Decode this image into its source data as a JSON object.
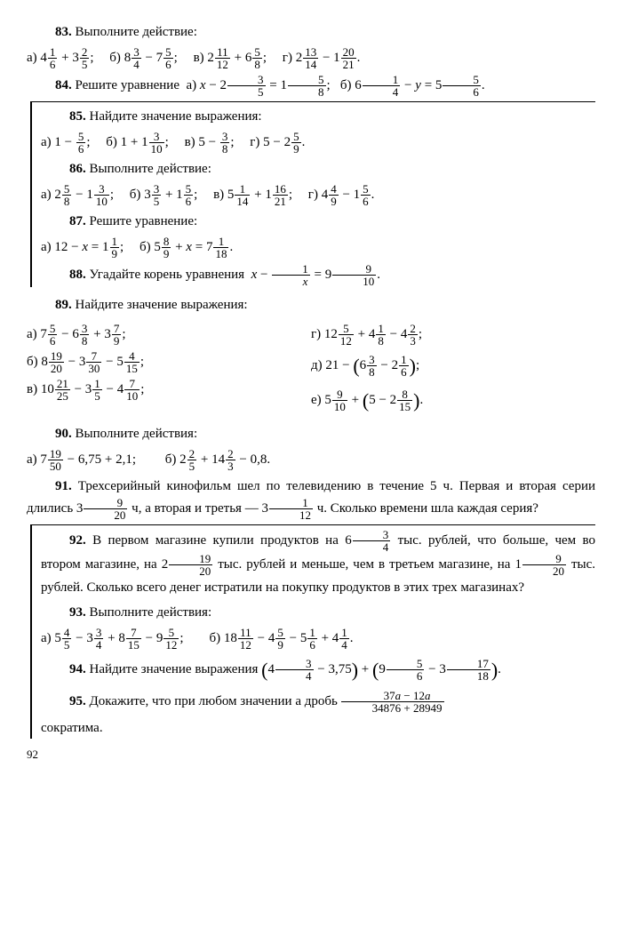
{
  "p83": {
    "title": "Выполните действие:",
    "a": "4 1/6 + 3 2/5",
    "b": "8 3/4 − 7 5/6",
    "c": "2 11/12 + 6 5/8",
    "d": "2 13/14 − 1 20/21"
  },
  "p84": {
    "title": "Решите уравнение",
    "a": "x − 2 3/5 = 1 5/8",
    "b": "6 1/4 − y = 5 5/6"
  },
  "p85": {
    "title": "Найдите значение выражения:",
    "a": "1 − 5/6",
    "b": "1 + 1 3/10",
    "c": "5 − 3/8",
    "d": "5 − 2 5/9"
  },
  "p86": {
    "title": "Выполните действие:",
    "a": "2 5/8 − 1 3/10",
    "b": "3 3/5 + 1 5/6",
    "c": "5 1/14 + 1 16/21",
    "d": "4 4/9 − 1 5/6"
  },
  "p87": {
    "title": "Решите уравнение:",
    "a": "12 − x = 1 1/9",
    "b": "5 8/9 + x = 7 1/18"
  },
  "p88": {
    "title": "Угадайте корень уравнения",
    "expr": "x − 1/x = 9 9/10"
  },
  "p89": {
    "title": "Найдите значение выражения:",
    "a": "7 5/6 − 6 3/8 + 3 7/9",
    "d": "12 5/12 + 4 1/8 − 4 2/3",
    "b": "8 19/20 − 3 7/30 − 5 4/15",
    "e": "21 − (6 3/8 − 2 1/6)",
    "c": "10 21/25 − 3 1/5 − 4 7/10",
    "f": "5 9/10 + (5 − 2 8/15)"
  },
  "p90": {
    "title": "Выполните действия:",
    "a": "7 19/50 − 6,75 + 2,1",
    "b": "2 2/5 + 14 2/3 − 0,8"
  },
  "p91": {
    "text": "Трехсерийный кинофильм шел по телевидению в течение 5 ч. Первая и вторая серии длились 3 9/20 ч, а вторая и третья — 3 1/12 ч. Сколько времени шла каждая серия?"
  },
  "p92": {
    "text": "В первом магазине купили продуктов на 6 3/4 тыс. рублей, что больше, чем во втором магазине, на 2 19/20 тыс. рублей и меньше, чем в третьем магазине, на 1 9/20 тыс. рублей. Сколько всего денег истратили на покупку продуктов в этих трех магазинах?"
  },
  "p93": {
    "title": "Выполните действия:",
    "a": "5 4/5 − 3 3/4 + 8 7/15 − 9 5/12",
    "b": "18 11/12 − 4 5/9 − 5 1/6 + 4 1/4"
  },
  "p94": {
    "title": "Найдите значение выражения",
    "expr": "(4 3/4 − 3,75) + (9 5/6 − 3 17/18)"
  },
  "p95": {
    "title": "Докажите, что при любом значении a дробь",
    "frac_num": "37a − 12a",
    "frac_den": "34876 + 28949",
    "tail": "сократима."
  },
  "page": "92"
}
